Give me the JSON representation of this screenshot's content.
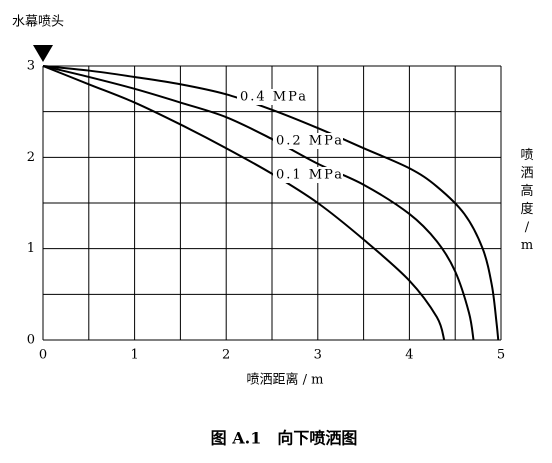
{
  "chart_data": {
    "type": "line",
    "caption": "图 A.1　向下喷洒图",
    "nozzle_label": "水幕喷头",
    "x_label": "喷洒距离 / m",
    "y_label": "喷洒高度/m",
    "xlim": [
      0,
      5
    ],
    "ylim": [
      0,
      3
    ],
    "xticks": [
      0,
      1,
      2,
      3,
      4,
      5
    ],
    "yticks": [
      0,
      1,
      2,
      3
    ],
    "xgrid": [
      0,
      0.5,
      1,
      1.5,
      2,
      2.5,
      3,
      3.5,
      4,
      4.5,
      5
    ],
    "ygrid": [
      0,
      0.5,
      1,
      1.5,
      2,
      2.5,
      3
    ],
    "grid": true,
    "series": [
      {
        "name": "0.4 MPa",
        "color": "#000000",
        "x": [
          0,
          0.5,
          1,
          1.5,
          2,
          2.5,
          3,
          3.5,
          4,
          4.3,
          4.6,
          4.8,
          4.9,
          4.95,
          4.97
        ],
        "values": [
          3,
          2.95,
          2.88,
          2.8,
          2.69,
          2.52,
          2.32,
          2.1,
          1.88,
          1.68,
          1.38,
          1.0,
          0.6,
          0.2,
          0
        ]
      },
      {
        "name": "0.2 MPa",
        "color": "#000000",
        "x": [
          0,
          0.5,
          1,
          1.5,
          2,
          2.5,
          3,
          3.5,
          4,
          4.3,
          4.5,
          4.65,
          4.7
        ],
        "values": [
          3,
          2.88,
          2.75,
          2.6,
          2.44,
          2.2,
          1.93,
          1.7,
          1.38,
          1.08,
          0.75,
          0.3,
          0
        ]
      },
      {
        "name": "0.1 MPa",
        "color": "#000000",
        "x": [
          0,
          0.5,
          1,
          1.5,
          2,
          2.5,
          3,
          3.5,
          4,
          4.3,
          4.38
        ],
        "values": [
          3,
          2.8,
          2.6,
          2.36,
          2.1,
          1.82,
          1.5,
          1.1,
          0.65,
          0.25,
          0
        ]
      }
    ]
  }
}
